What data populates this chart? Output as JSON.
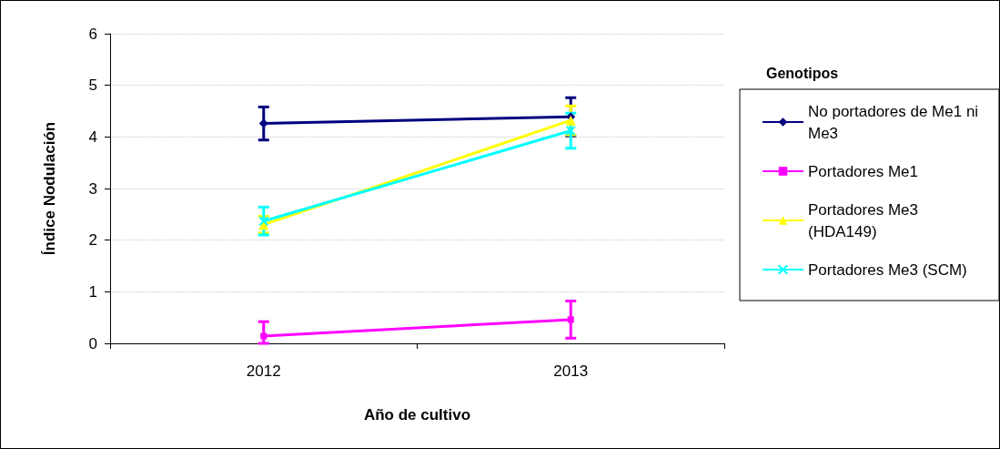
{
  "chart_data": {
    "type": "line",
    "xlabel": "Año de cultivo",
    "ylabel": "Índice Nodulación",
    "legend_title": "Genotipos",
    "categories": [
      "2012",
      "2013"
    ],
    "ylim": [
      0,
      6
    ],
    "yticks": [
      0,
      1,
      2,
      3,
      4,
      5,
      6
    ],
    "grid": "y",
    "legend": "right",
    "series": [
      {
        "name": "No portadores de Me1 ni Me3",
        "color": "#000080",
        "marker": "diamond",
        "values": [
          4.26,
          4.39
        ],
        "errors": [
          0.32,
          0.37
        ]
      },
      {
        "name": "Portadores Me1",
        "color": "#ff00ff",
        "marker": "square",
        "values": [
          0.14,
          0.46
        ],
        "errors": [
          [
            0,
            0.42
          ],
          0.36
        ]
      },
      {
        "name": "Portadores Me3 (HDA149)",
        "color": "#ffff00",
        "marker": "triangle",
        "values": [
          2.3,
          4.32
        ],
        "errors": [
          0.16,
          0.28
        ]
      },
      {
        "name": "Portadores Me3 (SCM)",
        "color": "#00ffff",
        "marker": "cross",
        "values": [
          2.37,
          4.12
        ],
        "errors": [
          0.27,
          0.34
        ]
      }
    ]
  }
}
